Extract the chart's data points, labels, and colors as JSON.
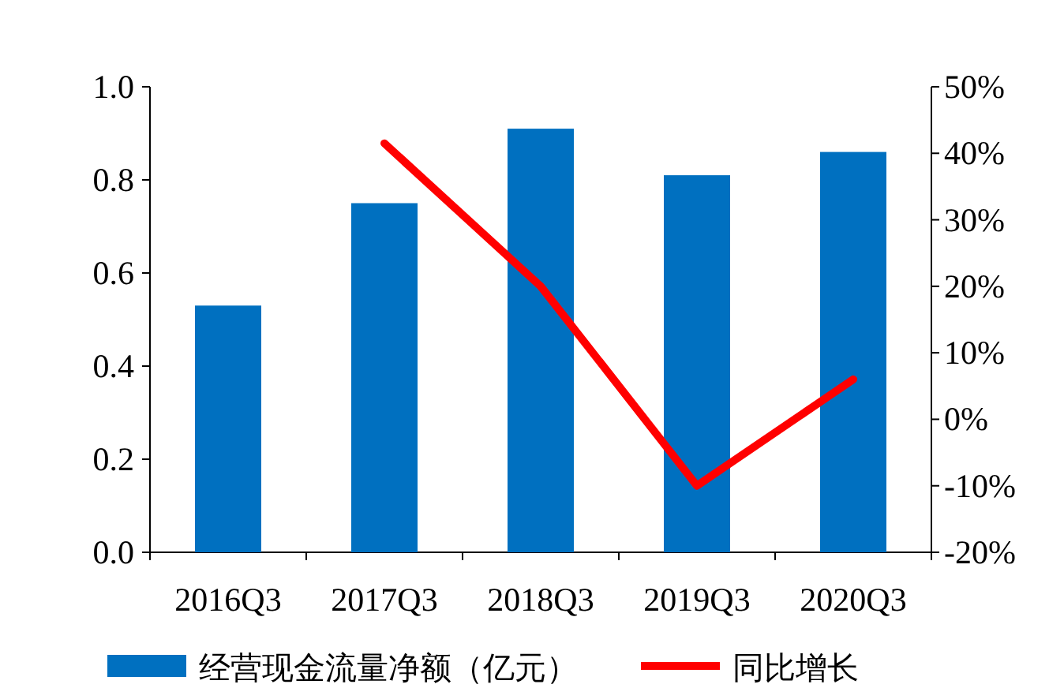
{
  "chart_data": {
    "type": "bar",
    "categories": [
      "2016Q3",
      "2017Q3",
      "2018Q3",
      "2019Q3",
      "2020Q3"
    ],
    "series": [
      {
        "name": "经营现金流量净额（亿元）",
        "color": "#0070c0",
        "values": [
          0.53,
          0.75,
          0.91,
          0.81,
          0.86
        ]
      },
      {
        "name": "同比增长",
        "type": "line",
        "axis": "y2",
        "color": "#ff0000",
        "values": [
          null,
          41.5,
          20,
          -10,
          6
        ]
      }
    ],
    "ylim": [
      0,
      1
    ],
    "yticks": [
      {
        "value": 0,
        "label": "0.0"
      },
      {
        "value": 0.2,
        "label": "0.2"
      },
      {
        "value": 0.4,
        "label": "0.4"
      },
      {
        "value": 0.6,
        "label": "0.6"
      },
      {
        "value": 0.8,
        "label": "0.8"
      },
      {
        "value": 1,
        "label": "1.0"
      }
    ],
    "y2lim": [
      -20,
      50
    ],
    "y2ticks": [
      {
        "value": -20,
        "label": "-20%"
      },
      {
        "value": -10,
        "label": "-10%"
      },
      {
        "value": 0,
        "label": "0%"
      },
      {
        "value": 10,
        "label": "10%"
      },
      {
        "value": 20,
        "label": "20%"
      },
      {
        "value": 30,
        "label": "30%"
      },
      {
        "value": 40,
        "label": "40%"
      },
      {
        "value": 50,
        "label": "50%"
      }
    ],
    "legend": "bottom",
    "grid": false
  }
}
